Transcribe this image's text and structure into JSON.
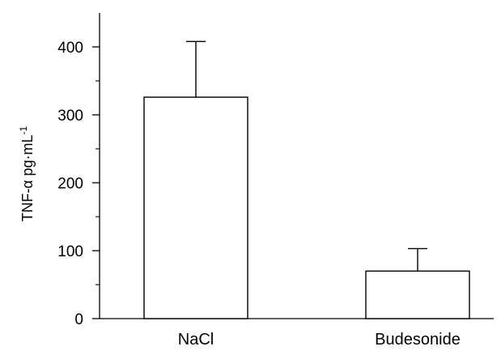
{
  "chart_data": {
    "type": "bar",
    "categories": [
      "NaCl",
      "Budesonide"
    ],
    "values": [
      326,
      70
    ],
    "error_upper": [
      408,
      103
    ],
    "ylabel": "TNF-α pg·mL",
    "ylabel_superscript": "-1",
    "ylim": [
      0,
      450
    ],
    "yticks": [
      0,
      100,
      200,
      300,
      400
    ],
    "ytick_labels": [
      "0",
      "100",
      "200",
      "300",
      "400"
    ],
    "minor_yticks": [
      50,
      150,
      250,
      350
    ],
    "grid": false,
    "legend": "none"
  }
}
